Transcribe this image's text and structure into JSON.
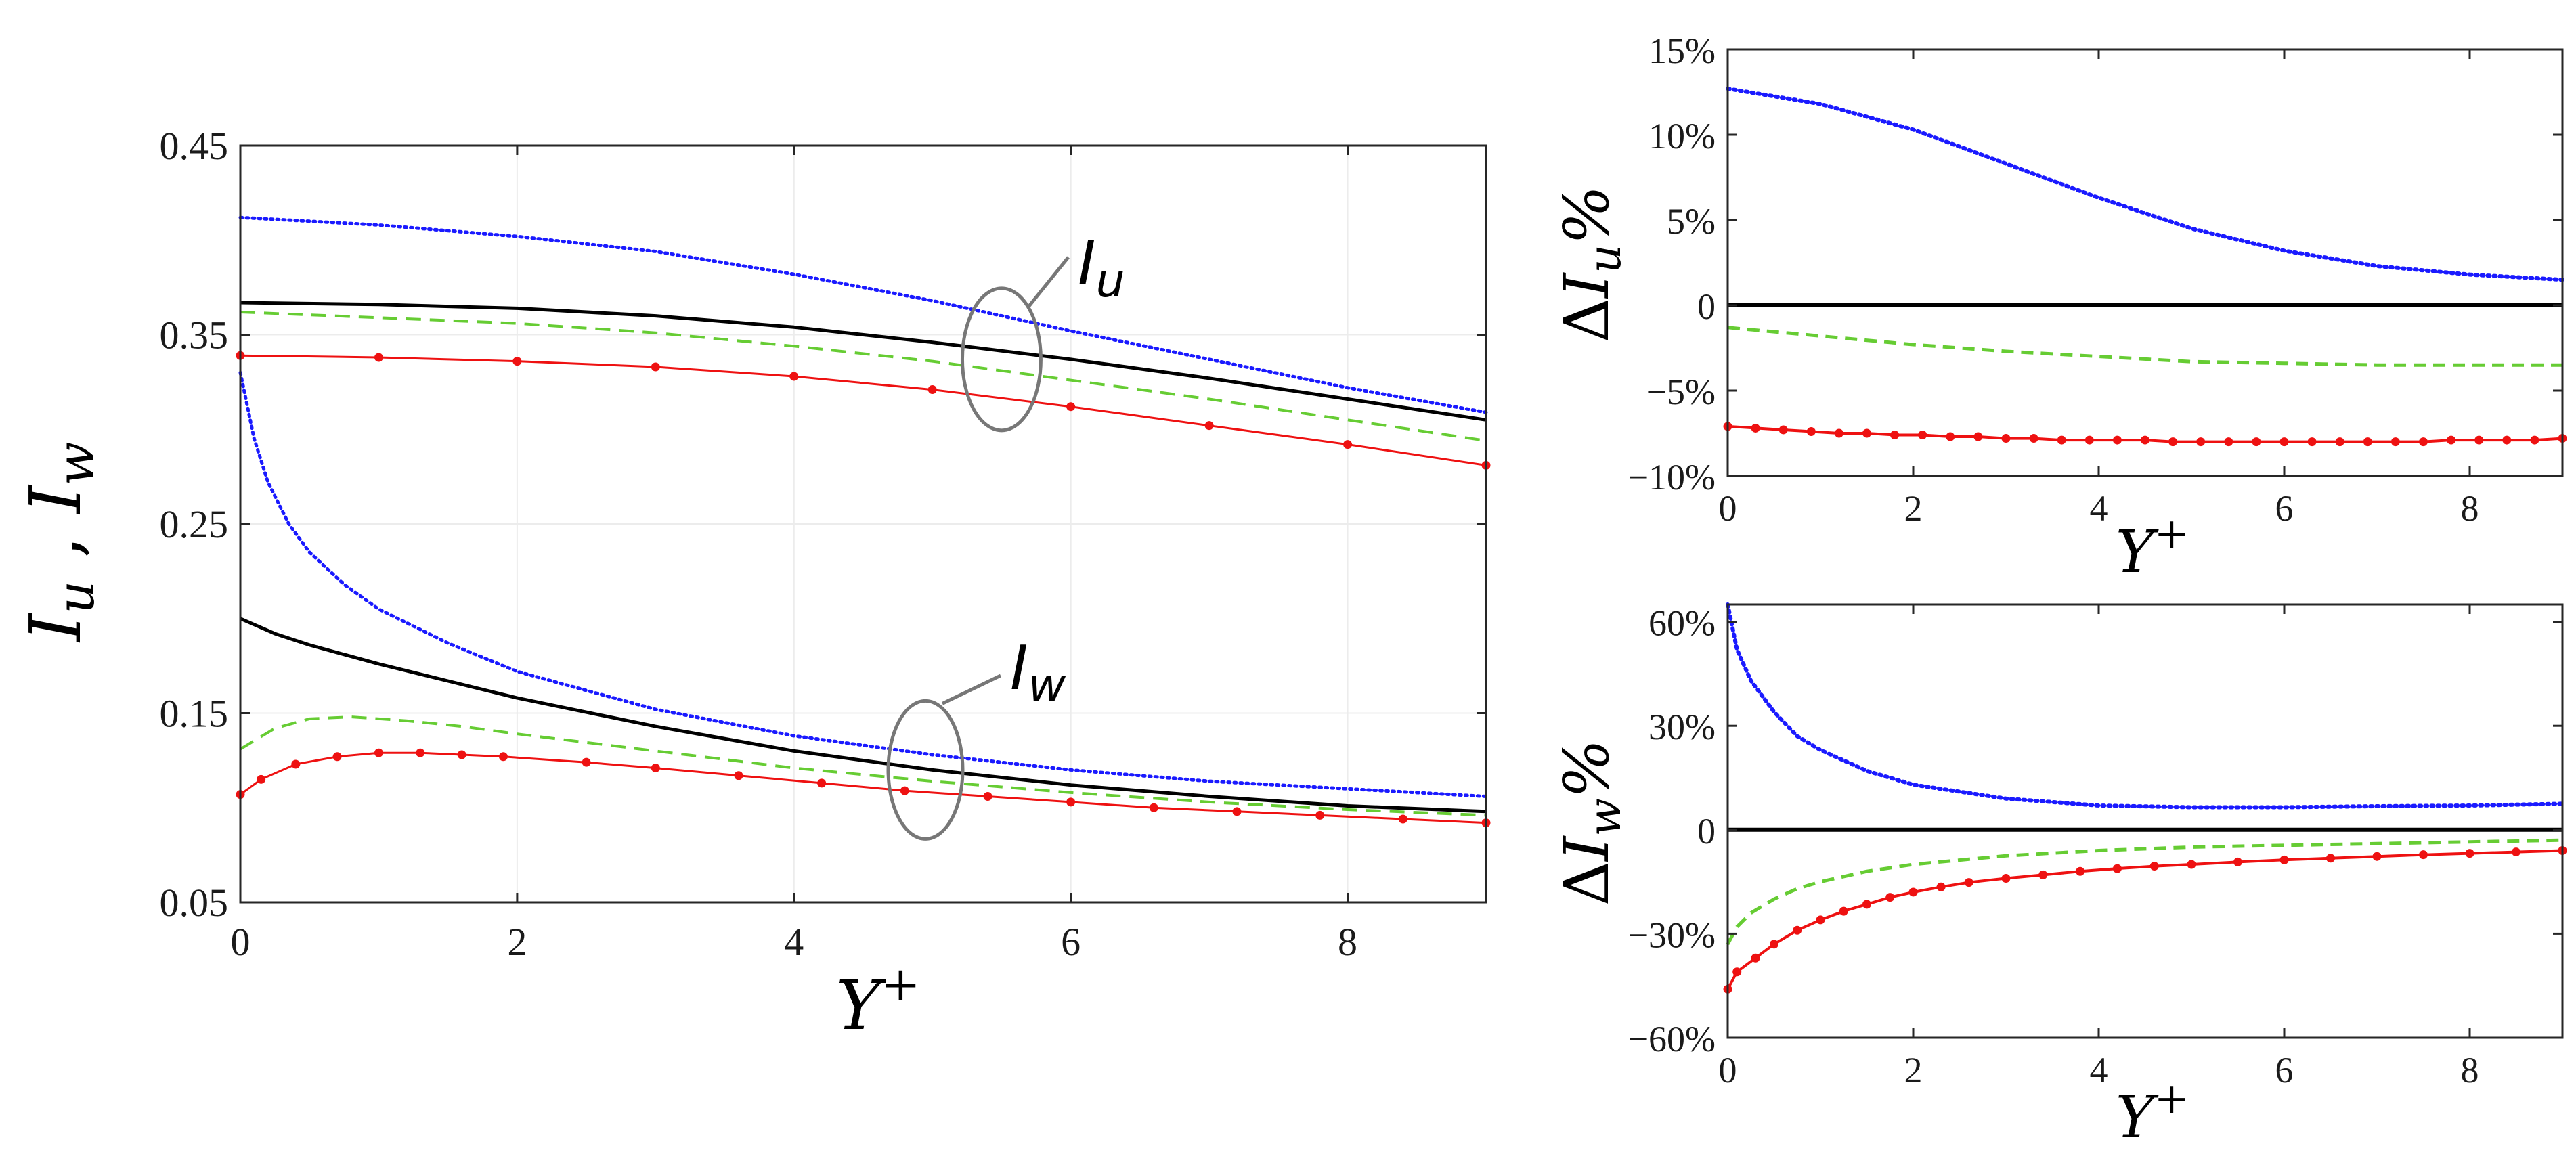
{
  "chart_data": [
    {
      "id": "main",
      "type": "line",
      "title": "",
      "ylabel": "I_u , I_w",
      "ylabel_parts": {
        "a": "I",
        "a_sub": "u",
        "sep": " , ",
        "b": "I",
        "b_sub": "w"
      },
      "xlabel": "Y+",
      "xlabel_parts": {
        "base": "Y",
        "sup": "+"
      },
      "xlim": [
        0,
        9
      ],
      "ylim": [
        0.05,
        0.45
      ],
      "xticks": [
        0,
        2,
        4,
        6,
        8
      ],
      "yticks": [
        0.05,
        0.15,
        0.25,
        0.35,
        0.45
      ],
      "ytick_labels": [
        "0.05",
        "0.15",
        "0.25",
        "0.35",
        "0.45"
      ],
      "grid": true,
      "annotations": [
        {
          "label": "I",
          "sub": "u",
          "target": "Iu curves",
          "center": [
            5.5,
            0.337
          ]
        },
        {
          "label": "I",
          "sub": "w",
          "target": "Iw curves",
          "center": [
            4.95,
            0.12
          ]
        }
      ],
      "series": [
        {
          "name": "Iu blue dotted",
          "color": "#1a1aff",
          "style": "dotted",
          "x": [
            0,
            1,
            2,
            3,
            4,
            5,
            6,
            7,
            8,
            9
          ],
          "y": [
            0.412,
            0.408,
            0.402,
            0.394,
            0.382,
            0.368,
            0.352,
            0.337,
            0.322,
            0.309
          ]
        },
        {
          "name": "Iu black solid",
          "color": "#000000",
          "style": "solid",
          "x": [
            0,
            1,
            2,
            3,
            4,
            5,
            6,
            7,
            8,
            9
          ],
          "y": [
            0.367,
            0.366,
            0.364,
            0.36,
            0.354,
            0.346,
            0.337,
            0.327,
            0.316,
            0.305
          ]
        },
        {
          "name": "Iu green dashed",
          "color": "#66cc33",
          "style": "dashed",
          "x": [
            0,
            1,
            2,
            3,
            4,
            5,
            6,
            7,
            8,
            9
          ],
          "y": [
            0.362,
            0.359,
            0.356,
            0.351,
            0.344,
            0.336,
            0.326,
            0.316,
            0.305,
            0.294
          ]
        },
        {
          "name": "Iu red markers",
          "color": "#ee1111",
          "style": "marker",
          "x": [
            0,
            1,
            2,
            3,
            4,
            5,
            6,
            7,
            8,
            9
          ],
          "y": [
            0.339,
            0.338,
            0.336,
            0.333,
            0.328,
            0.321,
            0.312,
            0.302,
            0.292,
            0.281
          ]
        },
        {
          "name": "Iw blue dotted",
          "color": "#1a1aff",
          "style": "dotted",
          "x": [
            0,
            0.1,
            0.2,
            0.35,
            0.5,
            0.75,
            1,
            1.5,
            2,
            3,
            4,
            5,
            6,
            7,
            8,
            9
          ],
          "y": [
            0.33,
            0.295,
            0.272,
            0.25,
            0.235,
            0.218,
            0.205,
            0.187,
            0.172,
            0.152,
            0.138,
            0.128,
            0.12,
            0.114,
            0.11,
            0.106
          ]
        },
        {
          "name": "Iw black solid",
          "color": "#000000",
          "style": "solid",
          "x": [
            0,
            0.25,
            0.5,
            1,
            1.5,
            2,
            3,
            4,
            5,
            6,
            7,
            8,
            9
          ],
          "y": [
            0.2,
            0.192,
            0.186,
            0.176,
            0.167,
            0.158,
            0.143,
            0.13,
            0.12,
            0.112,
            0.106,
            0.101,
            0.098
          ]
        },
        {
          "name": "Iw green dashed",
          "color": "#66cc33",
          "style": "dashed",
          "x": [
            0,
            0.25,
            0.5,
            0.8,
            1.2,
            1.6,
            2,
            3,
            4,
            5,
            6,
            7,
            8,
            9
          ],
          "y": [
            0.131,
            0.142,
            0.147,
            0.148,
            0.146,
            0.143,
            0.139,
            0.13,
            0.121,
            0.114,
            0.108,
            0.103,
            0.099,
            0.096
          ]
        },
        {
          "name": "Iw red markers",
          "color": "#ee1111",
          "style": "marker",
          "x": [
            0,
            0.15,
            0.4,
            0.7,
            1.0,
            1.3,
            1.6,
            1.9,
            2.5,
            3.0,
            3.6,
            4.2,
            4.8,
            5.4,
            6.0,
            6.6,
            7.2,
            7.8,
            8.4,
            9.0
          ],
          "y": [
            0.107,
            0.115,
            0.123,
            0.127,
            0.129,
            0.129,
            0.128,
            0.127,
            0.124,
            0.121,
            0.117,
            0.113,
            0.109,
            0.106,
            0.103,
            0.1,
            0.098,
            0.096,
            0.094,
            0.092
          ]
        }
      ]
    },
    {
      "id": "delta_u",
      "type": "line",
      "title": "",
      "ylabel": "ΔI_u%",
      "ylabel_parts": {
        "delta": "Δ",
        "base": "I",
        "sub": "u",
        "pct": "%"
      },
      "xlabel": "Y+",
      "xlabel_parts": {
        "base": "Y",
        "sup": "+"
      },
      "xlim": [
        0,
        9
      ],
      "ylim": [
        -10,
        15
      ],
      "xticks": [
        0,
        2,
        4,
        6,
        8
      ],
      "yticks": [
        -10,
        -5,
        0,
        5,
        10,
        15
      ],
      "ytick_labels": [
        "−10%",
        "−5%",
        "0",
        "5%",
        "10%",
        "15%"
      ],
      "grid": false,
      "series": [
        {
          "name": "blue dotted",
          "color": "#1a1aff",
          "style": "dotted",
          "x": [
            0,
            1,
            2,
            3,
            4,
            5,
            6,
            7,
            8,
            9
          ],
          "y": [
            12.7,
            11.8,
            10.3,
            8.3,
            6.3,
            4.5,
            3.2,
            2.3,
            1.8,
            1.5
          ]
        },
        {
          "name": "black solid",
          "color": "#000000",
          "style": "solid",
          "x": [
            0,
            9
          ],
          "y": [
            0,
            0
          ]
        },
        {
          "name": "green dashed",
          "color": "#66cc33",
          "style": "dashed",
          "x": [
            0,
            1,
            2,
            3,
            4,
            5,
            6,
            7,
            8,
            9
          ],
          "y": [
            -1.3,
            -1.8,
            -2.3,
            -2.7,
            -3.0,
            -3.3,
            -3.4,
            -3.5,
            -3.5,
            -3.5
          ]
        },
        {
          "name": "red markers",
          "color": "#ee1111",
          "style": "marker",
          "x": [
            0,
            0.3,
            0.6,
            0.9,
            1.2,
            1.5,
            1.8,
            2.1,
            2.4,
            2.7,
            3.0,
            3.3,
            3.6,
            3.9,
            4.2,
            4.5,
            4.8,
            5.1,
            5.4,
            5.7,
            6.0,
            6.3,
            6.6,
            6.9,
            7.2,
            7.5,
            7.8,
            8.1,
            8.4,
            8.7,
            9.0
          ],
          "y": [
            -7.1,
            -7.2,
            -7.3,
            -7.4,
            -7.5,
            -7.5,
            -7.6,
            -7.6,
            -7.7,
            -7.7,
            -7.8,
            -7.8,
            -7.9,
            -7.9,
            -7.9,
            -7.9,
            -8.0,
            -8.0,
            -8.0,
            -8.0,
            -8.0,
            -8.0,
            -8.0,
            -8.0,
            -8.0,
            -8.0,
            -7.9,
            -7.9,
            -7.9,
            -7.9,
            -7.8
          ]
        }
      ]
    },
    {
      "id": "delta_w",
      "type": "line",
      "title": "",
      "ylabel": "ΔI_w%",
      "ylabel_parts": {
        "delta": "Δ",
        "base": "I",
        "sub": "w",
        "pct": "%"
      },
      "xlabel": "Y+",
      "xlabel_parts": {
        "base": "Y",
        "sup": "+"
      },
      "xlim": [
        0,
        9
      ],
      "ylim": [
        -60,
        65
      ],
      "xticks": [
        0,
        2,
        4,
        6,
        8
      ],
      "yticks": [
        -60,
        -30,
        0,
        30,
        60
      ],
      "ytick_labels": [
        "−60%",
        "−30%",
        "0",
        "30%",
        "60%"
      ],
      "grid": false,
      "series": [
        {
          "name": "blue dotted",
          "color": "#1a1aff",
          "style": "dotted",
          "x": [
            0,
            0.1,
            0.25,
            0.5,
            0.75,
            1,
            1.5,
            2,
            2.5,
            3,
            4,
            5,
            6,
            7,
            8,
            9
          ],
          "y": [
            65,
            52,
            43,
            34,
            27,
            23,
            17,
            13,
            11,
            9,
            7,
            6.5,
            6.5,
            6.8,
            7,
            7.5
          ]
        },
        {
          "name": "black solid",
          "color": "#000000",
          "style": "solid",
          "x": [
            0,
            9
          ],
          "y": [
            0,
            0
          ]
        },
        {
          "name": "green dashed",
          "color": "#66cc33",
          "style": "dashed",
          "x": [
            0,
            0.1,
            0.25,
            0.5,
            0.75,
            1,
            1.5,
            2,
            3,
            4,
            5,
            6,
            7,
            8,
            9
          ],
          "y": [
            -33,
            -28,
            -24,
            -20,
            -17,
            -15,
            -12,
            -10,
            -7.5,
            -6,
            -5,
            -4.5,
            -4,
            -3.5,
            -3
          ]
        },
        {
          "name": "red markers",
          "color": "#ee1111",
          "style": "marker",
          "x": [
            0,
            0.1,
            0.3,
            0.5,
            0.75,
            1.0,
            1.25,
            1.5,
            1.75,
            2.0,
            2.3,
            2.6,
            3.0,
            3.4,
            3.8,
            4.2,
            4.6,
            5.0,
            5.5,
            6.0,
            6.5,
            7.0,
            7.5,
            8.0,
            8.5,
            9.0
          ],
          "y": [
            -46,
            -41,
            -37,
            -33,
            -29,
            -26,
            -23.5,
            -21.5,
            -19.5,
            -18,
            -16.5,
            -15.2,
            -14,
            -13,
            -12,
            -11.2,
            -10.5,
            -10,
            -9.3,
            -8.7,
            -8.2,
            -7.7,
            -7.2,
            -6.8,
            -6.4,
            -6
          ]
        }
      ]
    }
  ]
}
